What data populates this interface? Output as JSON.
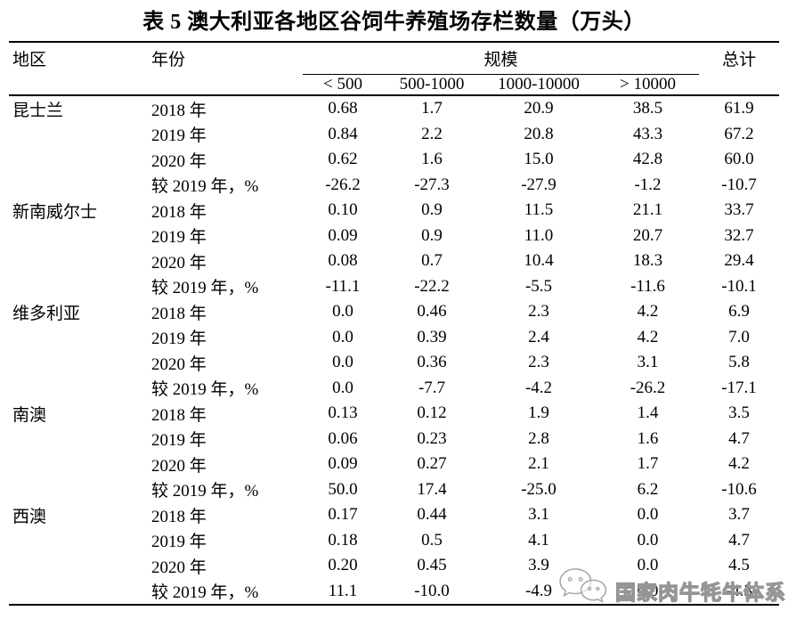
{
  "title": "表 5 澳大利亚各地区谷饲牛养殖场存栏数量（万头）",
  "headers": {
    "region": "地区",
    "year": "年份",
    "scale": "规模",
    "total": "总计",
    "scale_cols": [
      "< 500",
      "500-1000",
      "1000-10000",
      "> 10000"
    ]
  },
  "table": {
    "groups": [
      {
        "region": "昆士兰",
        "rows": [
          {
            "label": "2018 年",
            "values": [
              "0.68",
              "1.7",
              "20.9",
              "38.5",
              "61.9"
            ]
          },
          {
            "label": "2019 年",
            "values": [
              "0.84",
              "2.2",
              "20.8",
              "43.3",
              "67.2"
            ]
          },
          {
            "label": "2020 年",
            "values": [
              "0.62",
              "1.6",
              "15.0",
              "42.8",
              "60.0"
            ]
          },
          {
            "label": "较 2019 年，%",
            "values": [
              "-26.2",
              "-27.3",
              "-27.9",
              "-1.2",
              "-10.7"
            ]
          }
        ]
      },
      {
        "region": "新南威尔士",
        "rows": [
          {
            "label": "2018 年",
            "values": [
              "0.10",
              "0.9",
              "11.5",
              "21.1",
              "33.7"
            ]
          },
          {
            "label": "2019 年",
            "values": [
              "0.09",
              "0.9",
              "11.0",
              "20.7",
              "32.7"
            ]
          },
          {
            "label": "2020 年",
            "values": [
              "0.08",
              "0.7",
              "10.4",
              "18.3",
              "29.4"
            ]
          },
          {
            "label": "较 2019 年，%",
            "values": [
              "-11.1",
              "-22.2",
              "-5.5",
              "-11.6",
              "-10.1"
            ]
          }
        ]
      },
      {
        "region": "维多利亚",
        "rows": [
          {
            "label": "2018 年",
            "values": [
              "0.0",
              "0.46",
              "2.3",
              "4.2",
              "6.9"
            ]
          },
          {
            "label": "2019 年",
            "values": [
              "0.0",
              "0.39",
              "2.4",
              "4.2",
              "7.0"
            ]
          },
          {
            "label": "2020 年",
            "values": [
              "0.0",
              "0.36",
              "2.3",
              "3.1",
              "5.8"
            ]
          },
          {
            "label": "较 2019 年，%",
            "values": [
              "0.0",
              "-7.7",
              "-4.2",
              "-26.2",
              "-17.1"
            ]
          }
        ]
      },
      {
        "region": "南澳",
        "rows": [
          {
            "label": "2018 年",
            "values": [
              "0.13",
              "0.12",
              "1.9",
              "1.4",
              "3.5"
            ]
          },
          {
            "label": "2019 年",
            "values": [
              "0.06",
              "0.23",
              "2.8",
              "1.6",
              "4.7"
            ]
          },
          {
            "label": "2020 年",
            "values": [
              "0.09",
              "0.27",
              "2.1",
              "1.7",
              "4.2"
            ]
          },
          {
            "label": "较 2019 年，%",
            "values": [
              "50.0",
              "17.4",
              "-25.0",
              "6.2",
              "-10.6"
            ]
          }
        ]
      },
      {
        "region": "西澳",
        "rows": [
          {
            "label": "2018 年",
            "values": [
              "0.17",
              "0.44",
              "3.1",
              "0.0",
              "3.7"
            ]
          },
          {
            "label": "2019 年",
            "values": [
              "0.18",
              "0.5",
              "4.1",
              "0.0",
              "4.7"
            ]
          },
          {
            "label": "2020 年",
            "values": [
              "0.20",
              "0.45",
              "3.9",
              "0.0",
              "4.5"
            ]
          },
          {
            "label": "较 2019 年，%",
            "values": [
              "11.1",
              "-10.0",
              "-4.9",
              "0.0",
              "-4.3"
            ]
          }
        ]
      }
    ]
  },
  "watermark": {
    "text": "国家肉牛牦牛体系",
    "icon": "wechat-icon",
    "color": "#959595"
  }
}
